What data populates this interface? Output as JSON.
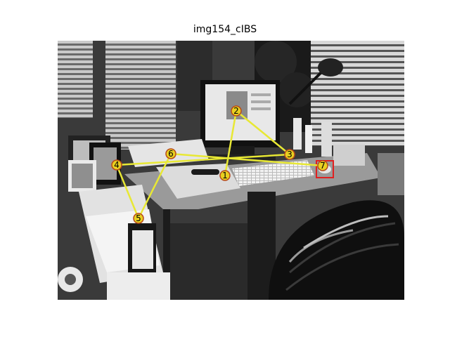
{
  "title": "img154_cIBS",
  "path_color": "#e8e834",
  "marker_fill": "#e8d020",
  "marker_stroke": "#b84a1a",
  "target_box_color": "#e02020",
  "scanpath": [
    {
      "label": "1"
    },
    {
      "label": "2"
    },
    {
      "label": "3"
    },
    {
      "label": "4"
    },
    {
      "label": "5"
    },
    {
      "label": "6"
    },
    {
      "label": "7"
    }
  ]
}
